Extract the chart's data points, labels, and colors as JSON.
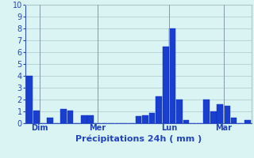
{
  "values": [
    4.0,
    1.1,
    0,
    0.5,
    0,
    1.2,
    1.1,
    0,
    0.7,
    0.7,
    0,
    0,
    0,
    0,
    0,
    0,
    0.6,
    0.7,
    0.9,
    2.3,
    6.5,
    8.0,
    2.0,
    0.3,
    0,
    0,
    2.0,
    1.0,
    1.6,
    1.5,
    0.5,
    0,
    0.3
  ],
  "day_labels": [
    "Dim",
    "Mer",
    "Lun",
    "Mar"
  ],
  "day_positions": [
    1.5,
    10.0,
    20.5,
    28.5
  ],
  "xlabel": "Précipitations 24h ( mm )",
  "ylim": [
    0,
    10
  ],
  "yticks": [
    0,
    1,
    2,
    3,
    4,
    5,
    6,
    7,
    8,
    9,
    10
  ],
  "bar_color": "#1a3fcc",
  "bar_edge_color": "#0a2acc",
  "bg_color": "#daf4f4",
  "grid_color": "#aac8c8",
  "axis_color": "#3355bb",
  "tick_color": "#2244bb",
  "label_color": "#2244bb",
  "day_line_color": "#8899aa"
}
